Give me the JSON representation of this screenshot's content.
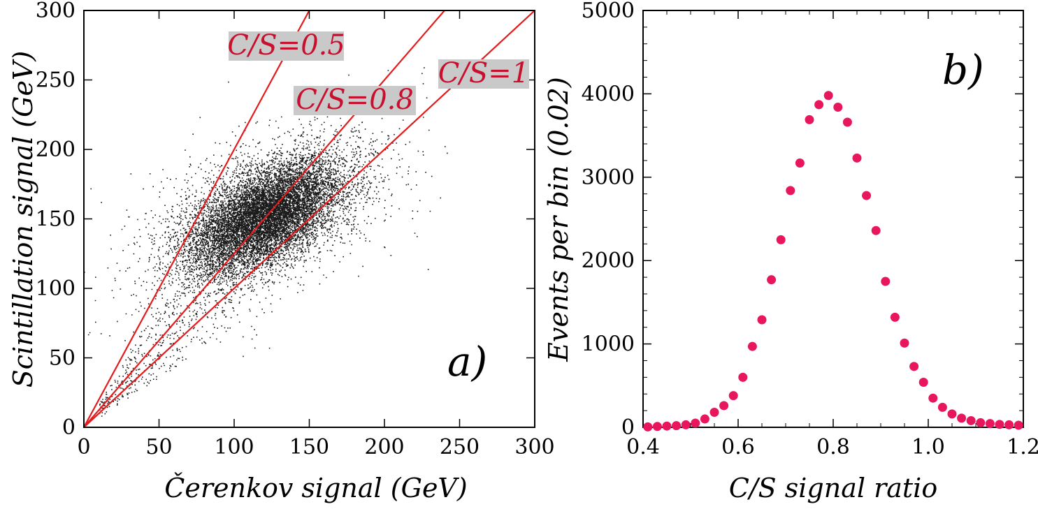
{
  "chart_data": [
    {
      "type": "scatter",
      "panel_label": "a)",
      "xlabel": "Čerenkov signal (GeV)",
      "ylabel": "Scintillation signal (GeV)",
      "xlim": [
        0,
        300
      ],
      "ylim": [
        0,
        300
      ],
      "x_ticks": [
        "0",
        "50",
        "100",
        "150",
        "200",
        "250",
        "300"
      ],
      "y_ticks": [
        "0",
        "50",
        "100",
        "150",
        "200",
        "250",
        "300"
      ],
      "grid": false,
      "scatter_distribution": {
        "description": "dense event cloud",
        "center_x": 120,
        "center_y": 152,
        "spread_x": 25,
        "spread_y": 20,
        "correlation": 0.55,
        "color": "#1a1a1a"
      },
      "reference_lines": [
        {
          "label": "C/S=0.5",
          "slope_y_over_x": 2.0,
          "color": "#e41a1c"
        },
        {
          "label": "C/S=0.8",
          "slope_y_over_x": 1.25,
          "color": "#e41a1c"
        },
        {
          "label": "C/S=1",
          "slope_y_over_x": 1.0,
          "color": "#e41a1c"
        }
      ]
    },
    {
      "type": "scatter",
      "panel_label": "b)",
      "xlabel": "C/S signal ratio",
      "ylabel": "Events per bin (0.02)",
      "xlim": [
        0.4,
        1.2
      ],
      "ylim": [
        0,
        5000
      ],
      "x_ticks": [
        "0.4",
        "0.6",
        "0.8",
        "1.0",
        "1.2"
      ],
      "y_ticks": [
        "0",
        "1000",
        "2000",
        "3000",
        "4000",
        "5000"
      ],
      "grid": false,
      "marker_color": "#e8175d",
      "x": [
        0.41,
        0.43,
        0.45,
        0.47,
        0.49,
        0.51,
        0.53,
        0.55,
        0.57,
        0.59,
        0.61,
        0.63,
        0.65,
        0.67,
        0.69,
        0.71,
        0.73,
        0.75,
        0.77,
        0.79,
        0.81,
        0.83,
        0.85,
        0.87,
        0.89,
        0.91,
        0.93,
        0.95,
        0.97,
        0.99,
        1.01,
        1.03,
        1.05,
        1.07,
        1.09,
        1.11,
        1.13,
        1.15,
        1.17,
        1.19
      ],
      "y": [
        5,
        10,
        15,
        20,
        30,
        50,
        100,
        180,
        260,
        380,
        600,
        970,
        1290,
        1770,
        2250,
        2840,
        3170,
        3690,
        3870,
        3980,
        3840,
        3660,
        3230,
        2780,
        2360,
        1750,
        1320,
        1010,
        730,
        540,
        350,
        240,
        160,
        110,
        80,
        55,
        45,
        35,
        30,
        25
      ]
    }
  ]
}
